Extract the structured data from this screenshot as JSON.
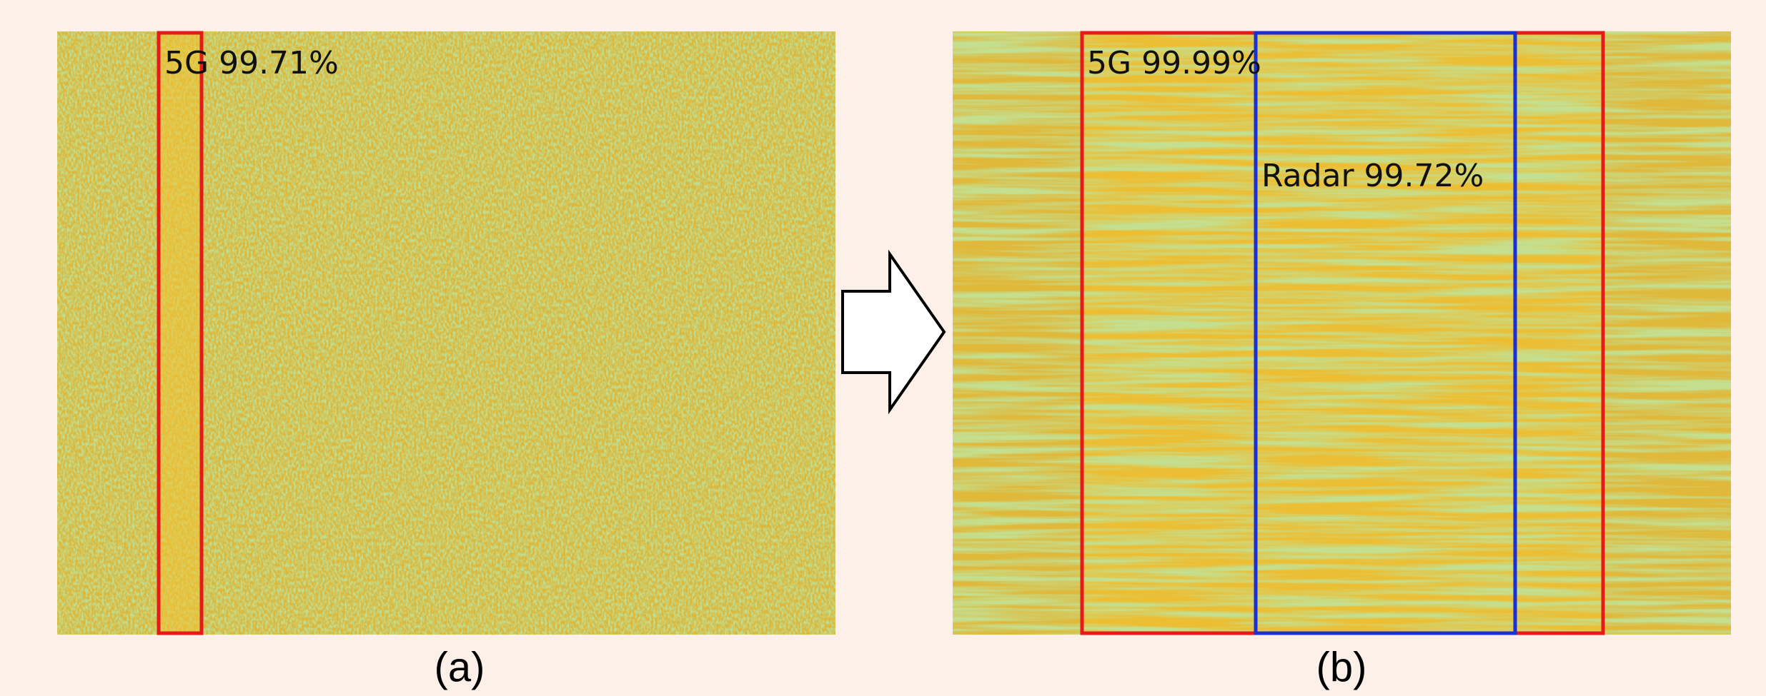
{
  "panels": [
    {
      "caption": "(a)",
      "detections": [
        {
          "label": "5G 99.71%"
        }
      ]
    },
    {
      "caption": "(b)",
      "detections": [
        {
          "label": "5G 99.99%"
        },
        {
          "label": "Radar 99.72%"
        }
      ]
    }
  ]
}
